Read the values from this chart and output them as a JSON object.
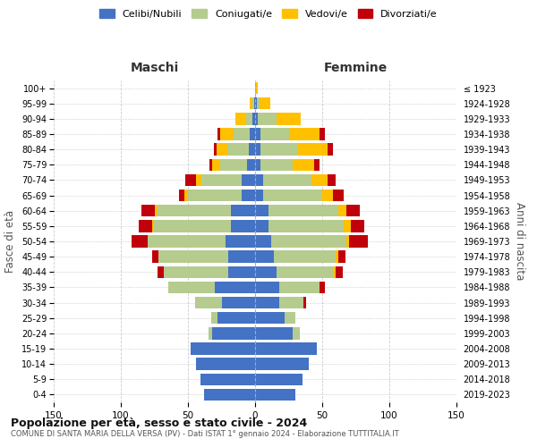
{
  "age_groups": [
    "0-4",
    "5-9",
    "10-14",
    "15-19",
    "20-24",
    "25-29",
    "30-34",
    "35-39",
    "40-44",
    "45-49",
    "50-54",
    "55-59",
    "60-64",
    "65-69",
    "70-74",
    "75-79",
    "80-84",
    "85-89",
    "90-94",
    "95-99",
    "100+"
  ],
  "birth_years": [
    "2019-2023",
    "2014-2018",
    "2009-2013",
    "2004-2008",
    "1999-2003",
    "1994-1998",
    "1989-1993",
    "1984-1988",
    "1979-1983",
    "1974-1978",
    "1969-1973",
    "1964-1968",
    "1959-1963",
    "1954-1958",
    "1949-1953",
    "1944-1948",
    "1939-1943",
    "1934-1938",
    "1929-1933",
    "1924-1928",
    "≤ 1923"
  ],
  "colors": {
    "celibe": "#4472c4",
    "coniugato": "#b5cc8e",
    "vedovo": "#ffc000",
    "divorziato": "#c0000a"
  },
  "maschi": {
    "celibe": [
      38,
      41,
      44,
      48,
      32,
      28,
      25,
      30,
      20,
      20,
      22,
      18,
      18,
      10,
      10,
      6,
      5,
      4,
      2,
      1,
      0
    ],
    "coniugato": [
      0,
      0,
      0,
      0,
      3,
      5,
      20,
      35,
      48,
      52,
      58,
      58,
      55,
      40,
      30,
      20,
      16,
      12,
      5,
      1,
      0
    ],
    "vedovo": [
      0,
      0,
      0,
      0,
      0,
      0,
      0,
      0,
      0,
      0,
      0,
      1,
      2,
      3,
      4,
      6,
      8,
      10,
      8,
      2,
      0
    ],
    "divorziato": [
      0,
      0,
      0,
      0,
      0,
      0,
      0,
      0,
      5,
      5,
      12,
      10,
      10,
      4,
      8,
      2,
      2,
      2,
      0,
      0,
      0
    ]
  },
  "femmine": {
    "celibe": [
      30,
      35,
      40,
      46,
      28,
      22,
      18,
      18,
      16,
      14,
      12,
      10,
      10,
      6,
      6,
      4,
      4,
      4,
      2,
      1,
      0
    ],
    "coniugato": [
      0,
      0,
      0,
      0,
      5,
      8,
      18,
      30,
      42,
      46,
      56,
      56,
      52,
      44,
      36,
      24,
      28,
      22,
      14,
      2,
      0
    ],
    "vedovo": [
      0,
      0,
      0,
      0,
      0,
      0,
      0,
      0,
      2,
      2,
      2,
      5,
      6,
      8,
      12,
      16,
      22,
      22,
      18,
      8,
      2
    ],
    "divorziato": [
      0,
      0,
      0,
      0,
      0,
      0,
      2,
      4,
      5,
      5,
      14,
      10,
      10,
      8,
      6,
      4,
      4,
      4,
      0,
      0,
      0
    ]
  },
  "title": "Popolazione per età, sesso e stato civile - 2024",
  "subtitle": "COMUNE DI SANTA MARIA DELLA VERSA (PV) - Dati ISTAT 1° gennaio 2024 - Elaborazione TUTTITALIA.IT",
  "xlabel_maschi": "Maschi",
  "xlabel_femmine": "Femmine",
  "ylabel": "Fasce di età",
  "ylabel_right": "Anni di nascita",
  "xlim": 150,
  "legend_labels": [
    "Celibi/Nubili",
    "Coniugati/e",
    "Vedovi/e",
    "Divorziati/e"
  ],
  "background_color": "#ffffff",
  "grid_color": "#cccccc"
}
